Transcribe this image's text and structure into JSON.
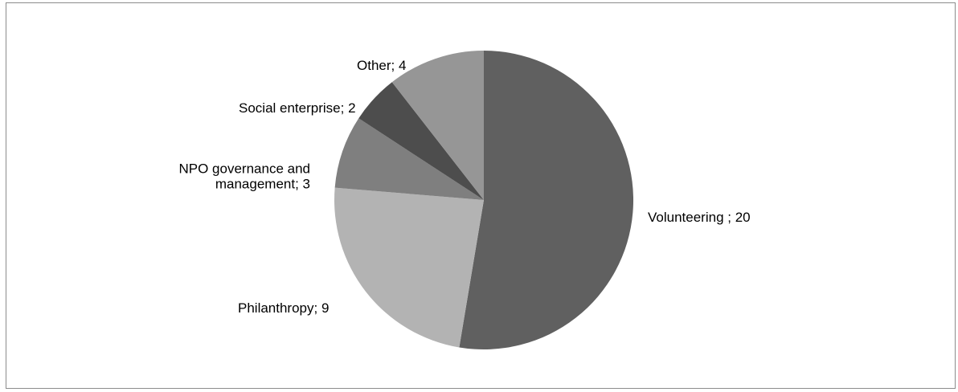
{
  "chart_data": {
    "type": "pie",
    "title": "",
    "series": [
      {
        "values": [
          20,
          9,
          3,
          2,
          4
        ],
        "categories": [
          "Volunteering",
          "Philanthropy",
          "NPO governance and management",
          "Social enterprise",
          "Other"
        ]
      }
    ],
    "slices": [
      {
        "category": "Volunteering",
        "value": 20,
        "color": "#606060",
        "label_lines": [
          "Volunteering ; 20"
        ]
      },
      {
        "category": "Philanthropy",
        "value": 9,
        "color": "#b3b3b3",
        "label_lines": [
          "Philanthropy; 9"
        ]
      },
      {
        "category": "NPO governance and management",
        "value": 3,
        "color": "#7f7f7f",
        "label_lines": [
          "NPO governance and",
          "management; 3"
        ]
      },
      {
        "category": "Social enterprise",
        "value": 2,
        "color": "#4d4d4d",
        "label_lines": [
          "Social enterprise; 2"
        ]
      },
      {
        "category": "Other",
        "value": 4,
        "color": "#969696",
        "label_lines": [
          "Other; 4"
        ]
      }
    ],
    "start_angle_deg": 0,
    "direction": "clockwise",
    "legend": "none",
    "data_labels": "outside"
  }
}
